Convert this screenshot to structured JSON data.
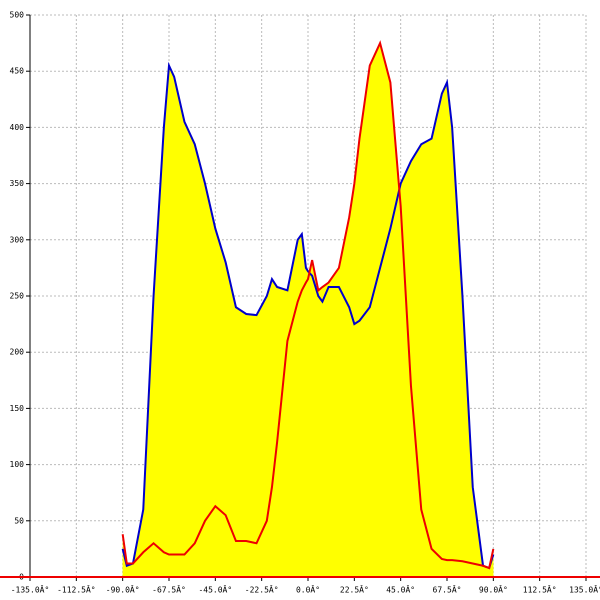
{
  "chart_data": {
    "type": "area",
    "x": [
      -90,
      -88,
      -85,
      -80,
      -75,
      -70,
      -67.5,
      -65,
      -60,
      -55,
      -50,
      -45,
      -40,
      -35,
      -30,
      -25,
      -20,
      -17.5,
      -15,
      -10,
      -5,
      -3,
      -1,
      0,
      2,
      5,
      7,
      10,
      15,
      20,
      22.5,
      25,
      30,
      35,
      40,
      45,
      50,
      55,
      60,
      65,
      67.5,
      70,
      75,
      80,
      85,
      88,
      90
    ],
    "series": [
      {
        "color": "#0000cc",
        "fill": "#ffff00",
        "values": [
          25,
          10,
          12,
          60,
          250,
          400,
          455,
          445,
          405,
          385,
          350,
          310,
          280,
          240,
          234,
          233,
          250,
          265,
          258,
          255,
          300,
          305,
          275,
          272,
          268,
          250,
          245,
          258,
          258,
          240,
          225,
          228,
          240,
          275,
          310,
          350,
          370,
          385,
          390,
          430,
          440,
          400,
          250,
          80,
          10,
          8,
          20
        ]
      },
      {
        "color": "#ee0000",
        "fill": "#ffff00",
        "values": [
          38,
          12,
          12,
          22,
          30,
          22,
          20,
          20,
          20,
          30,
          50,
          63,
          55,
          32,
          32,
          30,
          50,
          80,
          120,
          210,
          245,
          255,
          262,
          265,
          282,
          255,
          258,
          262,
          275,
          320,
          350,
          390,
          455,
          475,
          440,
          330,
          170,
          60,
          25,
          16,
          15,
          15,
          14,
          12,
          10,
          8,
          25
        ]
      }
    ],
    "xlim": [
      -135,
      135
    ],
    "xticks": [
      {
        "value": -135,
        "label": "-135.0Â°"
      },
      {
        "value": -112.5,
        "label": "-112.5Â°"
      },
      {
        "value": -90,
        "label": "-90.0Â°"
      },
      {
        "value": -67.5,
        "label": "-67.5Â°"
      },
      {
        "value": -45,
        "label": "-45.0Â°"
      },
      {
        "value": -22.5,
        "label": "-22.5Â°"
      },
      {
        "value": 0,
        "label": "0.0Â°"
      },
      {
        "value": 22.5,
        "label": "22.5Â°"
      },
      {
        "value": 45,
        "label": "45.0Â°"
      },
      {
        "value": 67.5,
        "label": "67.5Â°"
      },
      {
        "value": 90,
        "label": "90.0Â°"
      },
      {
        "value": 112.5,
        "label": "112.5Â°"
      },
      {
        "value": 135,
        "label": "135.0Â°"
      }
    ],
    "ylim": [
      0,
      500
    ],
    "yticks": [
      0,
      50,
      100,
      150,
      200,
      250,
      300,
      350,
      400,
      450,
      500
    ],
    "grid": true
  }
}
